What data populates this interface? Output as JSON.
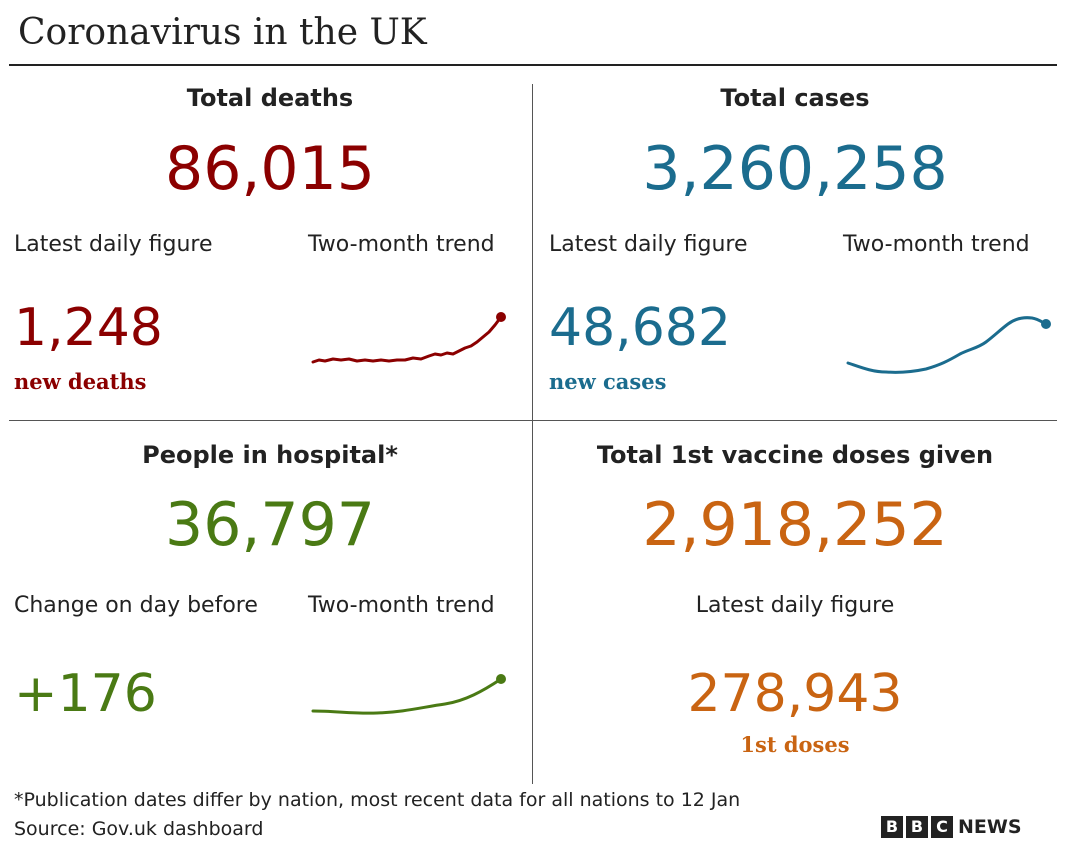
{
  "title": "Coronavirus in the UK",
  "colors": {
    "deaths": "#8b0000",
    "cases": "#1b6c8e",
    "hospital": "#4a7a14",
    "vaccine": "#c96412"
  },
  "deaths": {
    "heading": "Total deaths",
    "total": "86,015",
    "latest_label": "Latest daily figure",
    "trend_label": "Two-month trend",
    "latest_value": "1,248",
    "latest_sub": "new deaths"
  },
  "cases": {
    "heading": "Total cases",
    "total": "3,260,258",
    "latest_label": "Latest daily figure",
    "trend_label": "Two-month trend",
    "latest_value": "48,682",
    "latest_sub": "new cases"
  },
  "hospital": {
    "heading": "People in hospital*",
    "total": "36,797",
    "latest_label": "Change on day before",
    "trend_label": "Two-month trend",
    "latest_value": "+176"
  },
  "vaccine": {
    "heading": "Total 1st vaccine doses given",
    "total": "2,918,252",
    "latest_label": "Latest daily figure",
    "latest_value": "278,943",
    "latest_sub": "1st doses"
  },
  "footnote": "*Publication dates differ by nation, most recent data for all nations to 12 Jan",
  "source": "Source: Gov.uk dashboard",
  "logo": {
    "letters": [
      "B",
      "B",
      "C"
    ],
    "word": "NEWS"
  }
}
